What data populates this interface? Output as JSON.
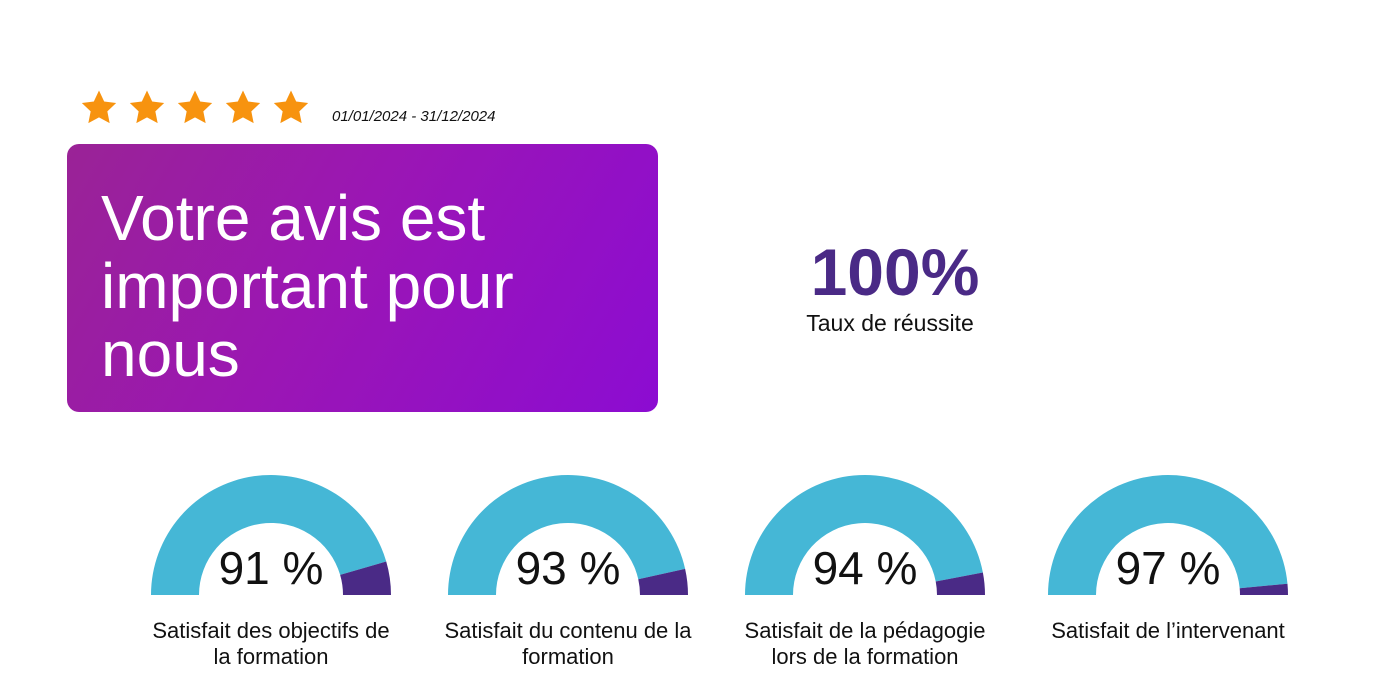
{
  "rating": {
    "stars": 5,
    "color": "#f7930f"
  },
  "period": "01/01/2024 - 31/12/2024",
  "banner": {
    "title": "Votre avis est important pour nous"
  },
  "kpi": {
    "value": "100%",
    "label": "Taux de réussite"
  },
  "colors": {
    "satisfied": "#45b7d6",
    "remainder": "#4a2a86",
    "banner_start": "#9a2396",
    "banner_end": "#8c0cd2"
  },
  "chart_data": {
    "type": "gauge",
    "title": "",
    "unit": "%",
    "range": [
      0,
      100
    ],
    "gauges": [
      {
        "value": 91,
        "display": "91 %",
        "label": "Satisfait des objectifs de la formation"
      },
      {
        "value": 93,
        "display": "93 %",
        "label": "Satisfait du contenu de la formation"
      },
      {
        "value": 94,
        "display": "94 %",
        "label": "Satisfait de la pédagogie lors de la formation"
      },
      {
        "value": 97,
        "display": "97 %",
        "label": "Satisfait de l’intervenant"
      }
    ]
  }
}
